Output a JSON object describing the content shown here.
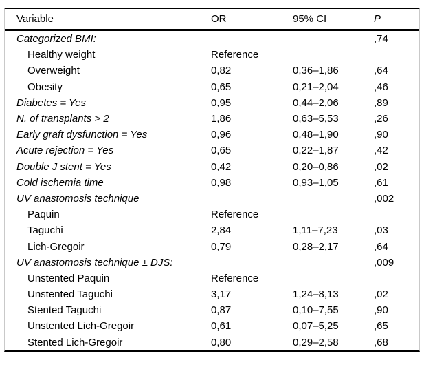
{
  "table": {
    "columns": {
      "variable": "Variable",
      "or": "OR",
      "ci": "95% CI",
      "p": "P"
    },
    "rows": [
      {
        "variable": "Categorized BMI:",
        "or": "",
        "ci": "",
        "p": ",74",
        "italic": true,
        "indent": false
      },
      {
        "variable": "Healthy weight",
        "or": "Reference",
        "ci": "",
        "p": "",
        "italic": false,
        "indent": true
      },
      {
        "variable": "Overweight",
        "or": "0,82",
        "ci": "0,36–1,86",
        "p": ",64",
        "italic": false,
        "indent": true
      },
      {
        "variable": "Obesity",
        "or": "0,65",
        "ci": "0,21–2,04",
        "p": ",46",
        "italic": false,
        "indent": true
      },
      {
        "variable": "Diabetes = Yes",
        "or": "0,95",
        "ci": "0,44–2,06",
        "p": ",89",
        "italic": true,
        "indent": false
      },
      {
        "variable": "N. of transplants > 2",
        "or": "1,86",
        "ci": "0,63–5,53",
        "p": ",26",
        "italic": true,
        "indent": false
      },
      {
        "variable": "Early graft dysfunction = Yes",
        "or": "0,96",
        "ci": "0,48–1,90",
        "p": ",90",
        "italic": true,
        "indent": false
      },
      {
        "variable": "Acute rejection = Yes",
        "or": "0,65",
        "ci": "0,22–1,87",
        "p": ",42",
        "italic": true,
        "indent": false
      },
      {
        "variable": "Double J stent = Yes",
        "or": "0,42",
        "ci": "0,20–0,86",
        "p": ",02",
        "italic": true,
        "indent": false
      },
      {
        "variable": "Cold ischemia time",
        "or": "0,98",
        "ci": "0,93–1,05",
        "p": ",61",
        "italic": true,
        "indent": false
      },
      {
        "variable": "UV anastomosis technique",
        "or": "",
        "ci": "",
        "p": ",002",
        "italic": true,
        "indent": false
      },
      {
        "variable": "Paquin",
        "or": "Reference",
        "ci": "",
        "p": "",
        "italic": false,
        "indent": true
      },
      {
        "variable": "Taguchi",
        "or": "2,84",
        "ci": "1,11–7,23",
        "p": ",03",
        "italic": false,
        "indent": true
      },
      {
        "variable": "Lich-Gregoir",
        "or": "0,79",
        "ci": "0,28–2,17",
        "p": ",64",
        "italic": false,
        "indent": true
      },
      {
        "variable": "UV anastomosis technique ± DJS:",
        "or": "",
        "ci": "",
        "p": ",009",
        "italic": true,
        "indent": false
      },
      {
        "variable": "Unstented Paquin",
        "or": "Reference",
        "ci": "",
        "p": "",
        "italic": false,
        "indent": true
      },
      {
        "variable": "Unstented Taguchi",
        "or": "3,17",
        "ci": "1,24–8,13",
        "p": ",02",
        "italic": false,
        "indent": true
      },
      {
        "variable": "Stented Taguchi",
        "or": "0,87",
        "ci": "0,10–7,55",
        "p": ",90",
        "italic": false,
        "indent": true
      },
      {
        "variable": "Unstented Lich-Gregoir",
        "or": "0,61",
        "ci": "0,07–5,25",
        "p": ",65",
        "italic": false,
        "indent": true
      },
      {
        "variable": "Stented Lich-Gregoir",
        "or": "0,80",
        "ci": "0,29–2,58",
        "p": ",68",
        "italic": false,
        "indent": true
      }
    ]
  },
  "colors": {
    "rule": "#000000",
    "frame_border": "#c9c9c9",
    "text": "#000000",
    "background": "#ffffff"
  }
}
